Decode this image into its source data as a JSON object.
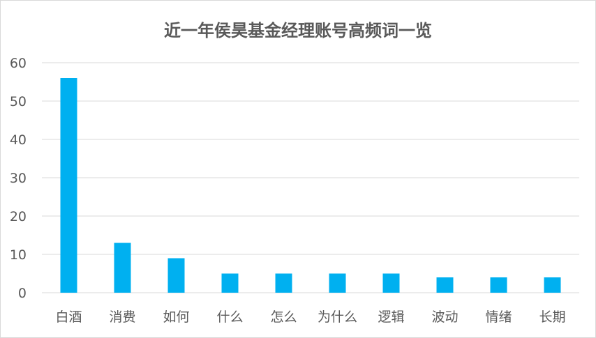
{
  "chart_data": {
    "type": "bar",
    "title": "近一年侯昊基金经理账号高频词一览",
    "categories": [
      "白酒",
      "消费",
      "如何",
      "什么",
      "怎么",
      "为什么",
      "逻辑",
      "波动",
      "情绪",
      "长期"
    ],
    "values": [
      56,
      13,
      9,
      5,
      5,
      5,
      5,
      4,
      4,
      4
    ],
    "ylim": [
      0,
      60
    ],
    "yticks": [
      0,
      10,
      20,
      30,
      40,
      50,
      60
    ],
    "grid": true,
    "legend": "none",
    "bar_color": "#00b0f0"
  }
}
